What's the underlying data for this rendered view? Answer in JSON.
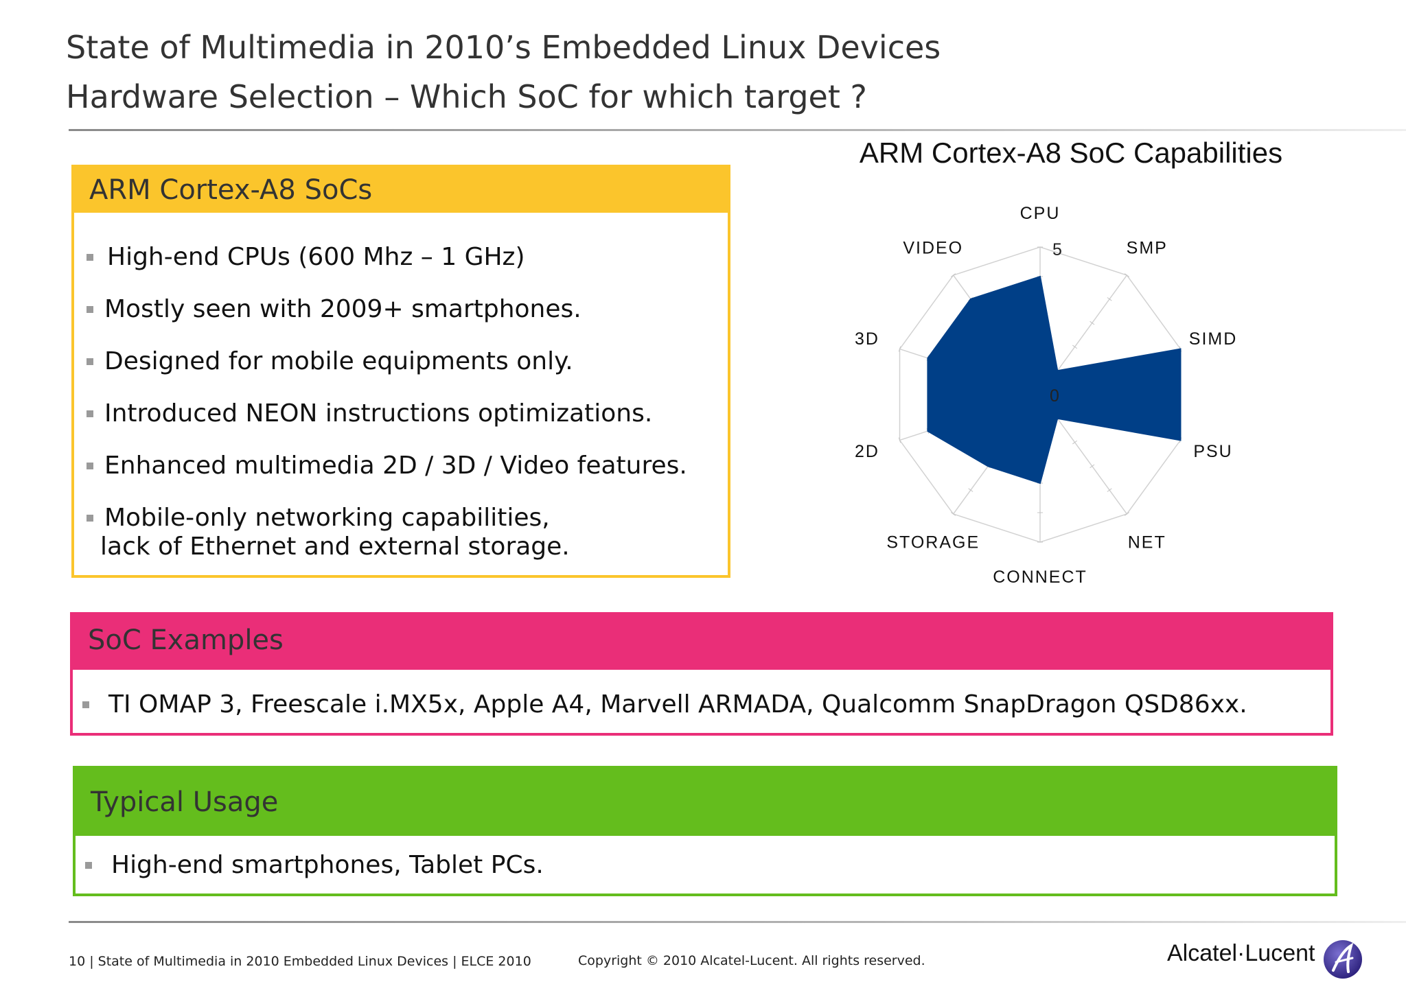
{
  "header": {
    "title_line1": "State of Multimedia in 2010’s Embedded Linux Devices",
    "title_line2": "Hardware Selection – Which SoC for which target ?"
  },
  "arm_panel": {
    "heading": "ARM Cortex-A8 SoCs",
    "bullets": [
      "High-end CPUs (600 Mhz – 1 GHz)",
      "Mostly seen with 2009+ smartphones.",
      "Designed for mobile equipments only.",
      "Introduced NEON instructions optimizations.",
      "Enhanced multimedia 2D / 3D / Video features.",
      "Mobile-only networking capabilities,",
      "lack of Ethernet and external storage."
    ]
  },
  "soc_panel": {
    "heading": "SoC Examples",
    "bullets": [
      "TI OMAP 3, Freescale i.MX5x, Apple A4, Marvell ARMADA, Qualcomm SnapDragon QSD86xx."
    ]
  },
  "usage_panel": {
    "heading": "Typical Usage",
    "bullets": [
      "High-end smartphones, Tablet PCs."
    ]
  },
  "chart_data": {
    "type": "radar",
    "title": "ARM Cortex-A8 SoC Capabilities",
    "categories": [
      "CPU",
      "SMP",
      "SIMD",
      "PSU",
      "NET",
      "CONNECT",
      "STORAGE",
      "2D",
      "3D",
      "VIDEO"
    ],
    "series": [
      {
        "values": [
          4,
          1,
          5,
          5,
          1,
          3,
          3,
          4,
          4,
          4
        ],
        "color": "#003f87"
      }
    ],
    "rmin": 0,
    "rmax": 5,
    "tick_labels": [
      "0",
      "5"
    ],
    "grid": true,
    "legend": "none"
  },
  "footer": {
    "left": "10 | State of Multimedia in 2010 Embedded Linux Devices | ELCE 2010",
    "copyright": "Copyright © 2010 Alcatel-Lucent. All rights reserved.",
    "brand": "Alcatel·Lucent"
  }
}
